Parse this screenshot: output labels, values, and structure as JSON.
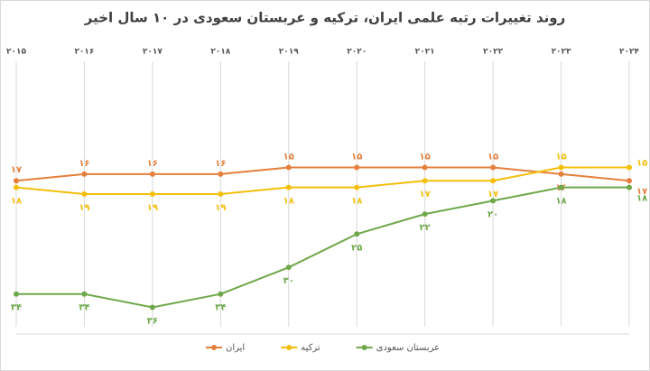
{
  "chart_data": {
    "type": "line",
    "title": "روند تغییرات رتبه علمی ایران، ترکیه و عربستان سعودی در ۱۰ سال اخیر",
    "categories": [
      "۲۰۱۵",
      "۲۰۱۶",
      "۲۰۱۷",
      "۲۰۱۸",
      "۲۰۱۹",
      "۲۰۲۰",
      "۲۰۲۱",
      "۲۰۲۲",
      "۲۰۲۳",
      "۲۰۲۴"
    ],
    "ylim": [
      -2,
      40
    ],
    "y_inverted": true,
    "grid": true,
    "series": [
      {
        "name": "ایران",
        "color": "#e4803c",
        "values": [
          17,
          16,
          16,
          16,
          15,
          15,
          15,
          15,
          16,
          17
        ],
        "value_labels": [
          "۱۷",
          "۱۶",
          "۱۶",
          "۱۶",
          "۱۵",
          "۱۵",
          "۱۵",
          "۱۵",
          "۱۶",
          "۱۷"
        ]
      },
      {
        "name": "ترکیه",
        "color": "#f4bf0c",
        "values": [
          18,
          19,
          19,
          19,
          18,
          18,
          17,
          17,
          15,
          15
        ],
        "value_labels": [
          "۱۸",
          "۱۹",
          "۱۹",
          "۱۹",
          "۱۸",
          "۱۸",
          "۱۷",
          "۱۷",
          "۱۵",
          "۱۵"
        ]
      },
      {
        "name": "عربستان سعودی",
        "color": "#6ea84a",
        "values": [
          34,
          34,
          36,
          34,
          30,
          25,
          22,
          20,
          18,
          18
        ],
        "value_labels": [
          "۳۴",
          "۳۴",
          "۳۶",
          "۳۴",
          "۳۰",
          "۲۵",
          "۲۲",
          "۲۰",
          "۱۸",
          "۱۸"
        ]
      }
    ]
  }
}
